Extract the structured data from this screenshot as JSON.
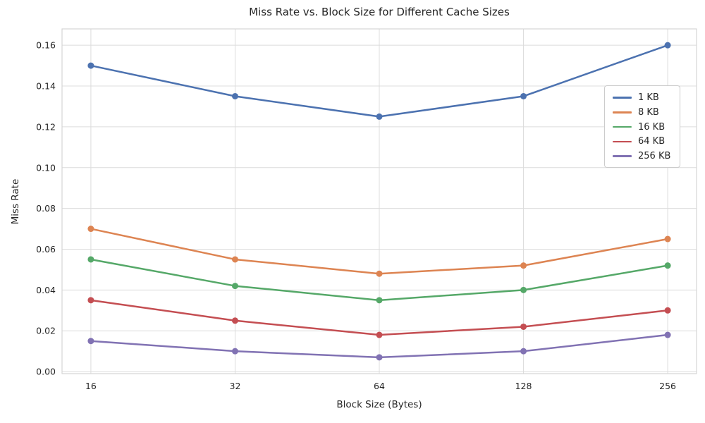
{
  "chart_data": {
    "type": "line",
    "title": "Miss Rate vs. Block Size for Different Cache Sizes",
    "xlabel": "Block Size (Bytes)",
    "ylabel": "Miss Rate",
    "categories": [
      "16",
      "32",
      "64",
      "128",
      "256"
    ],
    "series": [
      {
        "name": "1 KB",
        "color": "#4C72B0",
        "values": [
          0.15,
          0.135,
          0.125,
          0.135,
          0.16
        ]
      },
      {
        "name": "8 KB",
        "color": "#DD8452",
        "values": [
          0.07,
          0.055,
          0.048,
          0.052,
          0.065
        ]
      },
      {
        "name": "16 KB",
        "color": "#55A868",
        "values": [
          0.055,
          0.042,
          0.035,
          0.04,
          0.052
        ]
      },
      {
        "name": "64 KB",
        "color": "#C44E52",
        "values": [
          0.035,
          0.025,
          0.018,
          0.022,
          0.03
        ]
      },
      {
        "name": "256 KB",
        "color": "#8172B3",
        "values": [
          0.015,
          0.01,
          0.007,
          0.01,
          0.018
        ]
      }
    ],
    "y_ticks": [
      "0.00",
      "0.02",
      "0.04",
      "0.06",
      "0.08",
      "0.10",
      "0.12",
      "0.14",
      "0.16"
    ],
    "y_tick_values": [
      0.0,
      0.02,
      0.04,
      0.06,
      0.08,
      0.1,
      0.12,
      0.14,
      0.16
    ],
    "ylim": [
      -0.001,
      0.168
    ],
    "grid": true,
    "legend_position": "upper-right-inside",
    "marker": "circle",
    "line_width": 2.5,
    "marker_radius": 4.5
  },
  "style": {
    "background": "#ffffff",
    "grid_color": "#dcdcdc",
    "axes_edge_color": "#d5d5d5",
    "text_color": "#262626",
    "legend_border_color": "#cccccc"
  }
}
